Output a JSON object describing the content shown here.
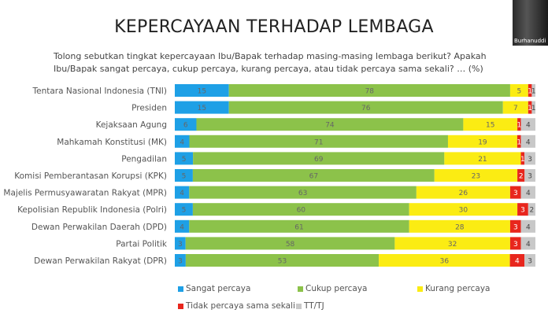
{
  "chart_data": {
    "type": "bar",
    "orientation": "horizontal",
    "stacked": true,
    "title": "KEPERCAYAAN TERHADAP LEMBAGA",
    "subtitle": "Tolong sebutkan tingkat kepercayaan Ibu/Bapak terhadap masing-masing lembaga berikut? Apakah Ibu/Bapak sangat percaya, cukup percaya, kurang percaya, atau tidak percaya sama sekali? … (%)",
    "categories": [
      "Tentara Nasional Indonesia (TNI)",
      "Presiden",
      "Kejaksaan Agung",
      "Mahkamah Konstitusi (MK)",
      "Pengadilan",
      "Komisi Pemberantasan Korupsi (KPK)",
      "Majelis Permusyawaratan Rakyat (MPR)",
      "Kepolisian Republik Indonesia (Polri)",
      "Dewan Perwakilan Daerah (DPD)",
      "Partai Politik",
      "Dewan Perwakilan Rakyat (DPR)"
    ],
    "series": [
      {
        "name": "Sangat percaya",
        "color": "#1ea0e6",
        "values": [
          15,
          15,
          6,
          4,
          5,
          5,
          4,
          5,
          4,
          3,
          3
        ]
      },
      {
        "name": "Cukup percaya",
        "color": "#8cc24a",
        "values": [
          78,
          76,
          74,
          71,
          69,
          67,
          63,
          60,
          61,
          58,
          53
        ]
      },
      {
        "name": "Kurang percaya",
        "color": "#fbec13",
        "values": [
          5,
          7,
          15,
          19,
          21,
          23,
          26,
          30,
          28,
          32,
          36
        ]
      },
      {
        "name": "Tidak percaya sama sekali",
        "color": "#e8261d",
        "values": [
          1,
          1,
          1,
          1,
          1,
          2,
          3,
          3,
          3,
          3,
          4
        ]
      },
      {
        "name": "TT/TJ",
        "color": "#c8c8c8",
        "values": [
          1,
          1,
          4,
          4,
          3,
          3,
          4,
          2,
          4,
          4,
          3
        ]
      }
    ],
    "xlim": [
      0,
      100
    ],
    "legend_position": "bottom",
    "grid": false
  },
  "overlay": {
    "webcam_name": "Burhanuddi"
  }
}
